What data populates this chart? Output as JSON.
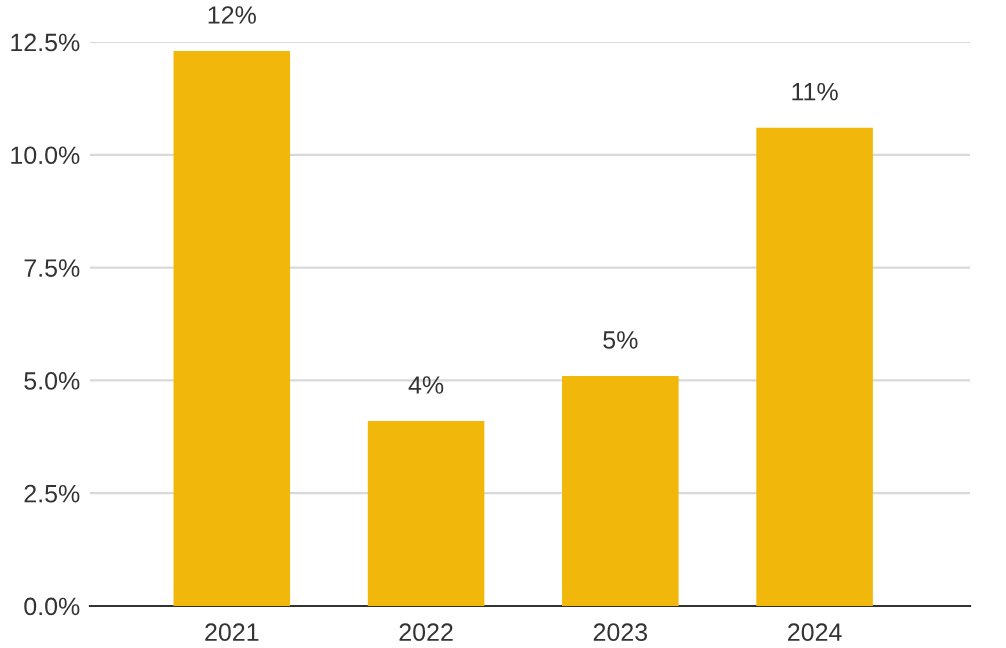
{
  "chart_data": {
    "type": "bar",
    "categories": [
      "2021",
      "2022",
      "2023",
      "2024"
    ],
    "values": [
      12.3,
      4.1,
      5.1,
      10.6
    ],
    "value_labels": [
      "12%",
      "4%",
      "5%",
      "11%"
    ],
    "color": "#f1b80b",
    "ylim": [
      0,
      12.5
    ],
    "yticks": [
      {
        "value": 0,
        "label": "0.0%"
      },
      {
        "value": 2.5,
        "label": "2.5%"
      },
      {
        "value": 5,
        "label": "5.0%"
      },
      {
        "value": 7.5,
        "label": "7.5%"
      },
      {
        "value": 10,
        "label": "10.0%"
      },
      {
        "value": 12.5,
        "label": "12.5%"
      }
    ],
    "grid": "y",
    "legend": false
  }
}
